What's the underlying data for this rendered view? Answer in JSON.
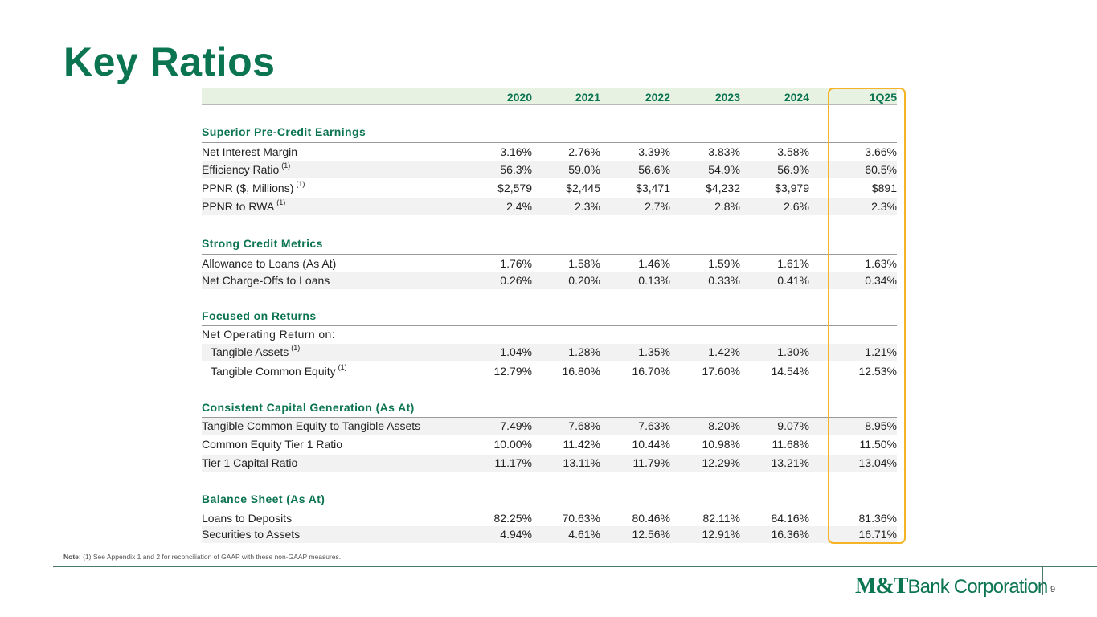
{
  "title": "Key Ratios",
  "columns": [
    "2020",
    "2021",
    "2022",
    "2023",
    "2024",
    "1Q25"
  ],
  "sections": [
    {
      "heading": "Superior Pre-Credit Earnings",
      "rows": [
        {
          "label": "Net Interest Margin",
          "sup": "",
          "values": [
            "3.16%",
            "2.76%",
            "3.39%",
            "3.83%",
            "3.58%",
            "3.66%"
          ]
        },
        {
          "label": "Efficiency Ratio",
          "sup": "(1)",
          "values": [
            "56.3%",
            "59.0%",
            "56.6%",
            "54.9%",
            "56.9%",
            "60.5%"
          ]
        },
        {
          "label": "PPNR ($, Millions)",
          "sup": "(1)",
          "values": [
            "$2,579",
            "$2,445",
            "$3,471",
            "$4,232",
            "$3,979",
            "$891"
          ]
        },
        {
          "label": "PPNR to RWA",
          "sup": "(1)",
          "values": [
            "2.4%",
            "2.3%",
            "2.7%",
            "2.8%",
            "2.6%",
            "2.3%"
          ]
        }
      ]
    },
    {
      "heading": "Strong Credit Metrics",
      "rows": [
        {
          "label": "Allowance to Loans (As At)",
          "sup": "",
          "values": [
            "1.76%",
            "1.58%",
            "1.46%",
            "1.59%",
            "1.61%",
            "1.63%"
          ]
        },
        {
          "label": "Net Charge-Offs to Loans",
          "sup": "",
          "values": [
            "0.26%",
            "0.20%",
            "0.13%",
            "0.33%",
            "0.41%",
            "0.34%"
          ]
        }
      ]
    },
    {
      "heading": "Focused on Returns",
      "subheading": "Net Operating Return on:",
      "rows": [
        {
          "label": "Tangible Assets",
          "sup": "(1)",
          "values": [
            "1.04%",
            "1.28%",
            "1.35%",
            "1.42%",
            "1.30%",
            "1.21%"
          ]
        },
        {
          "label": "Tangible Common Equity",
          "sup": "(1)",
          "values": [
            "12.79%",
            "16.80%",
            "16.70%",
            "17.60%",
            "14.54%",
            "12.53%"
          ]
        }
      ]
    },
    {
      "heading": "Consistent Capital Generation (As At)",
      "rows": [
        {
          "label": "Tangible Common Equity to Tangible Assets",
          "sup": "",
          "values": [
            "7.49%",
            "7.68%",
            "7.63%",
            "8.20%",
            "9.07%",
            "8.95%"
          ]
        },
        {
          "label": "Common Equity Tier 1 Ratio",
          "sup": "",
          "values": [
            "10.00%",
            "11.42%",
            "10.44%",
            "10.98%",
            "11.68%",
            "11.50%"
          ]
        },
        {
          "label": "Tier 1 Capital Ratio",
          "sup": "",
          "values": [
            "11.17%",
            "13.11%",
            "11.79%",
            "12.29%",
            "13.21%",
            "13.04%"
          ]
        }
      ]
    },
    {
      "heading": "Balance Sheet (As At)",
      "rows": [
        {
          "label": "Loans to Deposits",
          "sup": "",
          "values": [
            "82.25%",
            "70.63%",
            "80.46%",
            "82.11%",
            "84.16%",
            "81.36%"
          ]
        },
        {
          "label": "Securities to Assets",
          "sup": "",
          "values": [
            "4.94%",
            "4.61%",
            "12.56%",
            "12.91%",
            "16.36%",
            "16.71%"
          ]
        }
      ]
    }
  ],
  "note": {
    "label": "Note:",
    "text": "(1) See Appendix 1 and 2 for reconciliation of GAAP with these non-GAAP measures."
  },
  "logo": {
    "mt": "M&T",
    "rest": "Bank Corporation"
  },
  "page_number": "9",
  "colors": {
    "brand_green": "#0b7450",
    "highlight": "#f5b325",
    "header_fill": "#e7f2e3"
  }
}
